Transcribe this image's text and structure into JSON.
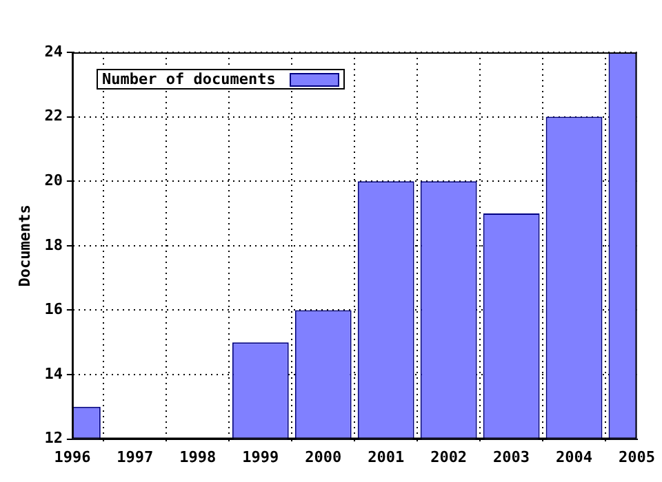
{
  "chart_data": {
    "type": "bar",
    "ylabel": "Documents",
    "categories": [
      "1996",
      "1997",
      "1998",
      "1999",
      "2000",
      "2001",
      "2002",
      "2003",
      "2004",
      "2005"
    ],
    "series": [
      {
        "name": "Number of documents",
        "color": "#8080ff",
        "values": [
          13,
          null,
          null,
          15,
          16,
          20,
          20,
          19,
          22,
          24
        ]
      }
    ],
    "ylim": [
      12,
      24
    ],
    "yticks": [
      12,
      14,
      16,
      18,
      20,
      22,
      24
    ],
    "grid": true,
    "legend": "top left"
  }
}
